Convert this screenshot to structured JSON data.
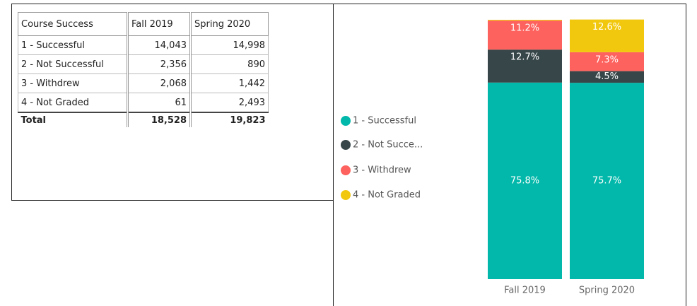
{
  "table": {
    "header": [
      "Course Success",
      "Fall 2019",
      "Spring 2020"
    ],
    "rows": [
      [
        "1 - Successful",
        "14,043",
        "14,998"
      ],
      [
        "2 - Not Successful",
        "2,356",
        "890"
      ],
      [
        "3 - Withdrew",
        "2,068",
        "1,442"
      ],
      [
        "4 - Not Graded",
        "61",
        "2,493"
      ]
    ],
    "total": [
      "Total",
      "18,528",
      "19,823"
    ]
  },
  "chart_data": {
    "type": "stacked_bar",
    "categories": [
      "Fall 2019",
      "Spring 2020"
    ],
    "ylim": [
      0,
      100
    ],
    "series": [
      {
        "name": "1 - Successful",
        "color": "#01B8AA",
        "values": [
          75.8,
          75.7
        ],
        "value_labels": [
          "75.8%",
          "75.7%"
        ]
      },
      {
        "name": "2 - Not Succe...",
        "color": "#374649",
        "values": [
          12.7,
          4.5
        ],
        "value_labels": [
          "12.7%",
          "4.5%"
        ]
      },
      {
        "name": "3 - Withdrew",
        "color": "#FD625E",
        "values": [
          11.2,
          7.3
        ],
        "value_labels": [
          "11.2%",
          "7.3%"
        ]
      },
      {
        "name": "4 - Not Graded",
        "color": "#F2C80F",
        "values": [
          0.3,
          12.6
        ],
        "value_labels": [
          null,
          "12.6%"
        ]
      }
    ]
  }
}
